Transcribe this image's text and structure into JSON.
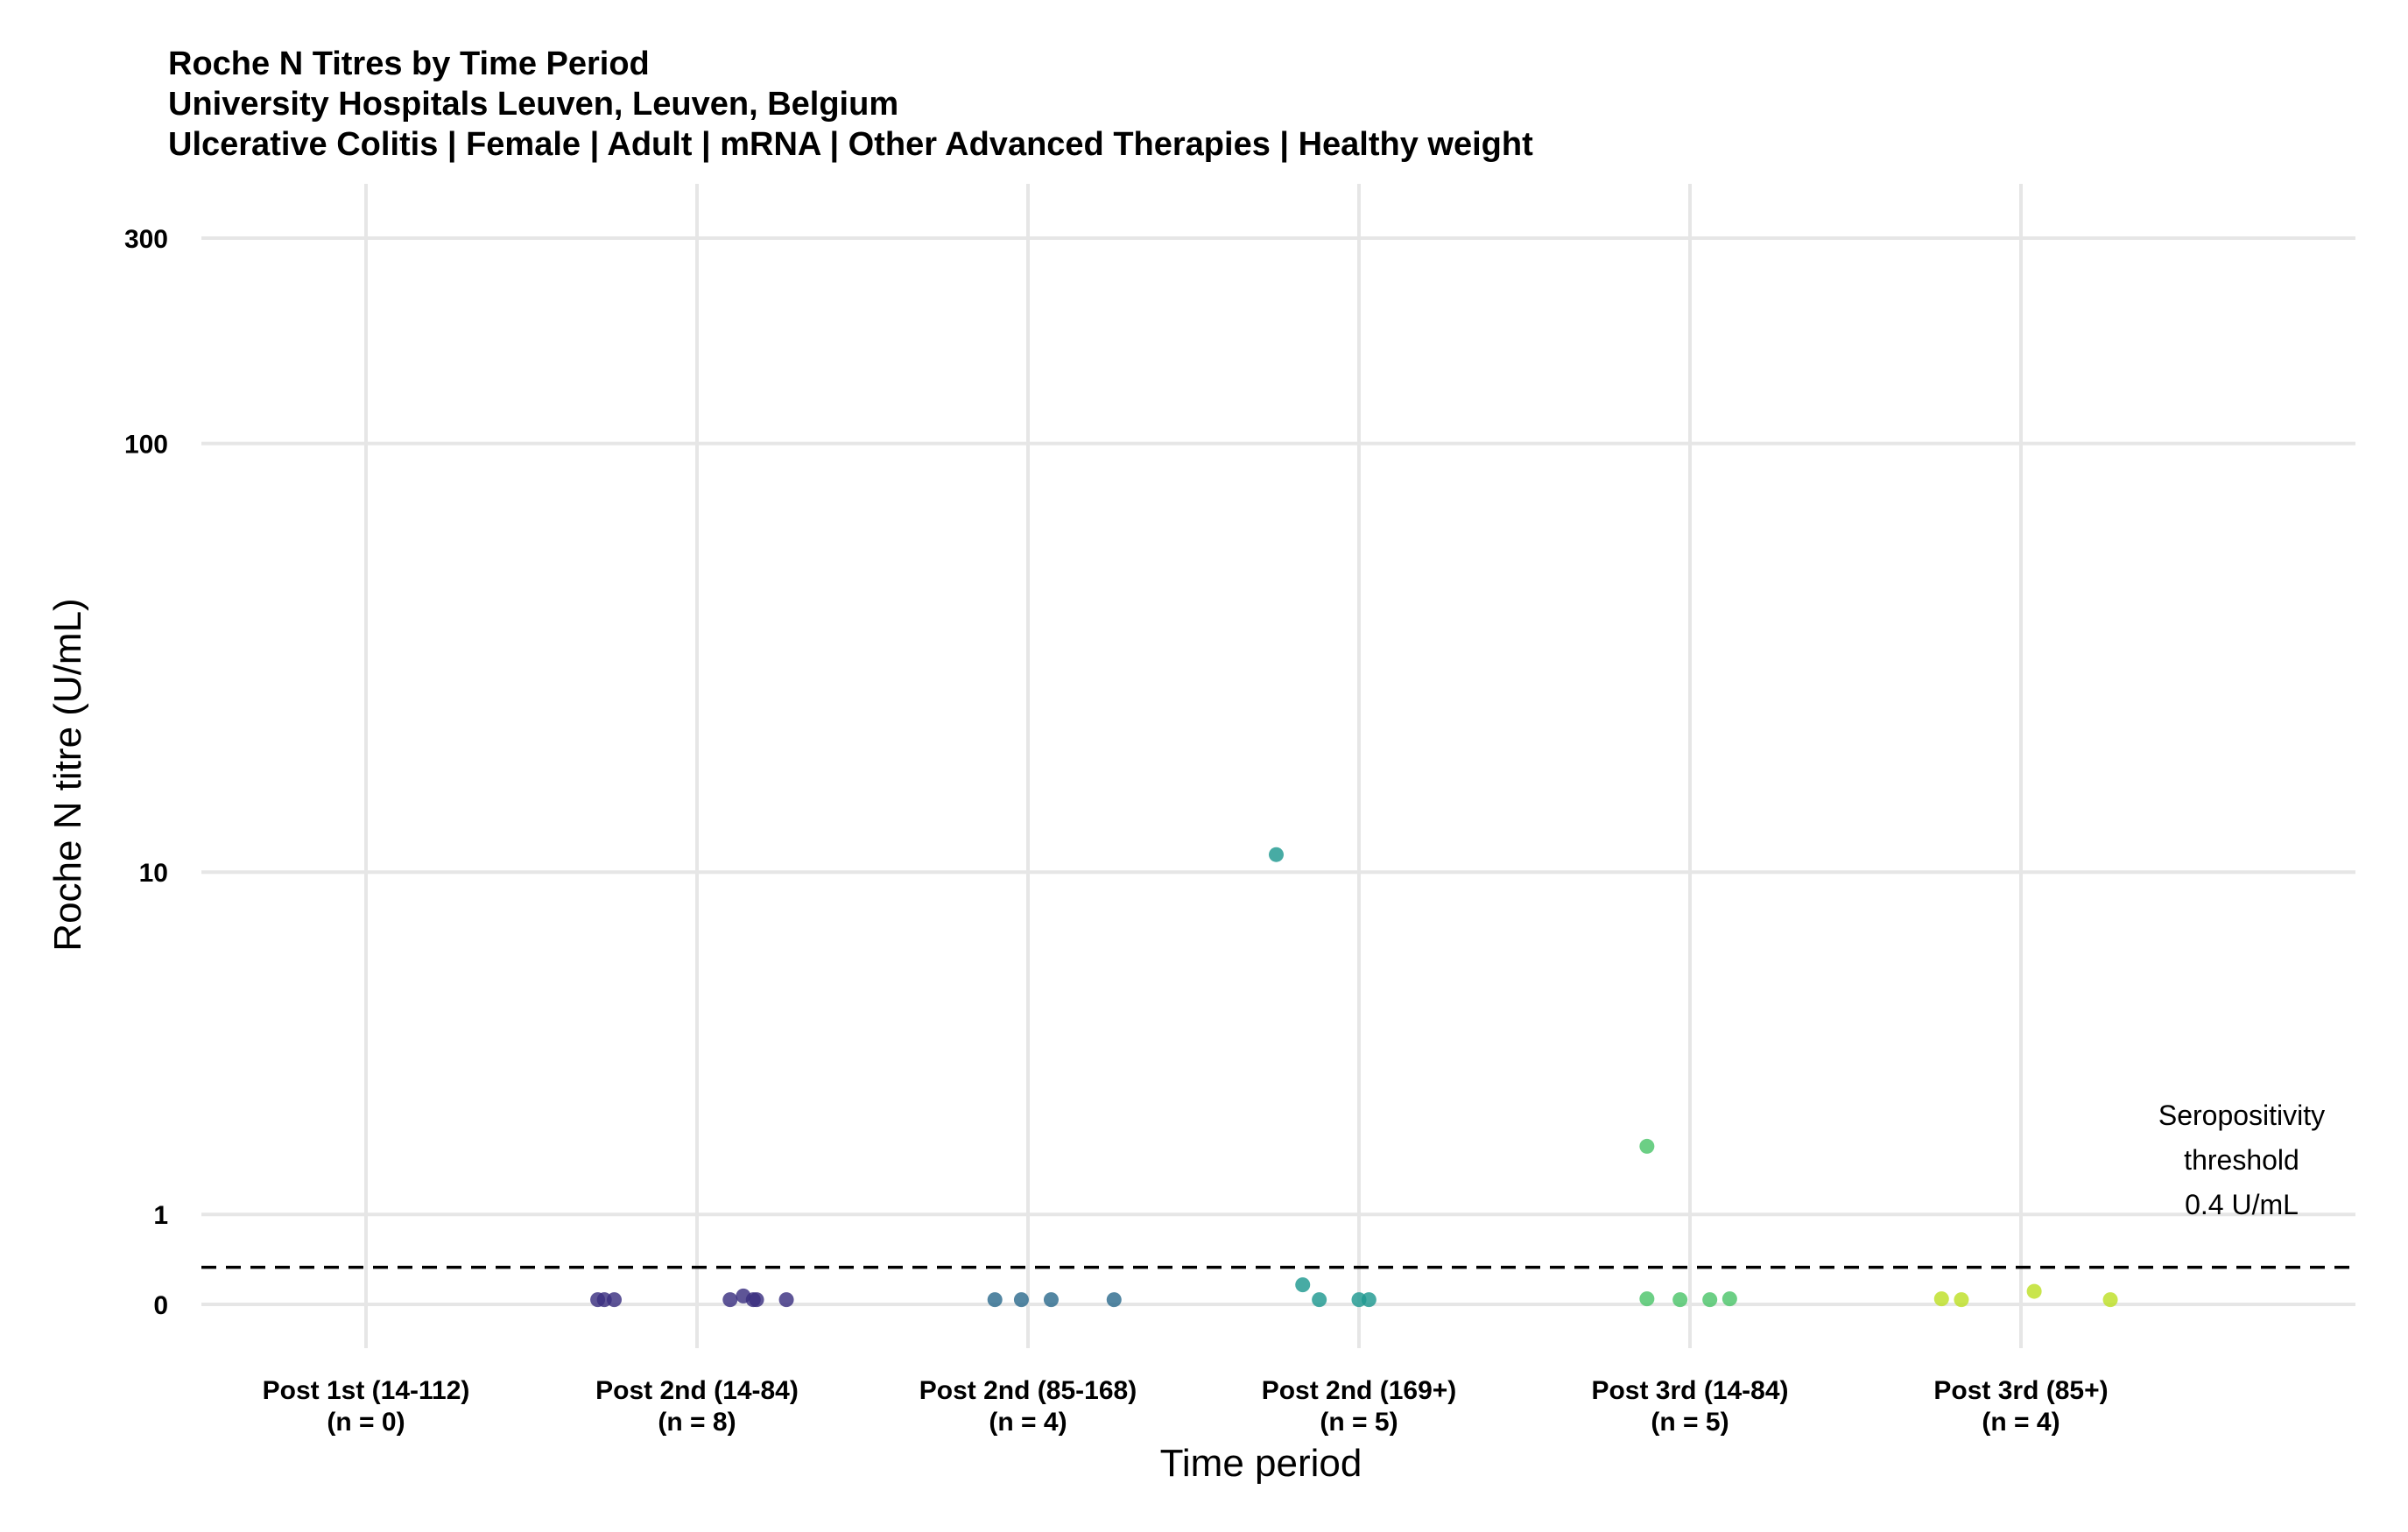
{
  "chart_data": {
    "type": "scatter",
    "title": "Roche N Titres by Time Period",
    "subtitle_1": "University Hospitals Leuven, Leuven, Belgium",
    "subtitle_2": "Ulcerative Colitis | Female | Adult | mRNA | Other Advanced Therapies | Healthy weight",
    "xlabel": "Time period",
    "ylabel": "Roche N titre (U/mL)",
    "y_scale": "pseudo-log",
    "y_ticks": [
      0,
      1,
      10,
      100,
      300
    ],
    "y_tick_labels": [
      "0",
      "1",
      "10",
      "100",
      "300"
    ],
    "ylim": [
      -0.05,
      400
    ],
    "grid": true,
    "categories": [
      {
        "label": "Post 1st (14-112)",
        "n_label": "(n = 0)"
      },
      {
        "label": "Post 2nd (14-84)",
        "n_label": "(n = 8)"
      },
      {
        "label": "Post 2nd (85-168)",
        "n_label": "(n = 4)"
      },
      {
        "label": "Post 2nd (169+)",
        "n_label": "(n = 5)"
      },
      {
        "label": "Post 3rd (14-84)",
        "n_label": "(n = 5)"
      },
      {
        "label": "Post 3rd (85+)",
        "n_label": "(n = 4)"
      }
    ],
    "colors": [
      "#3b1f70",
      "#3b2f80",
      "#2d6b8e",
      "#1f9990",
      "#4cc46a",
      "#bddf26"
    ],
    "points": [
      {
        "cat": 1,
        "x": 0.7,
        "y": 0.05
      },
      {
        "cat": 1,
        "x": 0.72,
        "y": 0.05
      },
      {
        "cat": 1,
        "x": 0.75,
        "y": 0.05
      },
      {
        "cat": 1,
        "x": 1.1,
        "y": 0.05
      },
      {
        "cat": 1,
        "x": 1.14,
        "y": 0.09
      },
      {
        "cat": 1,
        "x": 1.17,
        "y": 0.05
      },
      {
        "cat": 1,
        "x": 1.18,
        "y": 0.05
      },
      {
        "cat": 1,
        "x": 1.27,
        "y": 0.05
      },
      {
        "cat": 2,
        "x": 1.9,
        "y": 0.05
      },
      {
        "cat": 2,
        "x": 1.98,
        "y": 0.05
      },
      {
        "cat": 2,
        "x": 2.07,
        "y": 0.05
      },
      {
        "cat": 2,
        "x": 2.26,
        "y": 0.05
      },
      {
        "cat": 3,
        "x": 2.75,
        "y": 11
      },
      {
        "cat": 3,
        "x": 2.83,
        "y": 0.21
      },
      {
        "cat": 3,
        "x": 2.88,
        "y": 0.05
      },
      {
        "cat": 3,
        "x": 3.0,
        "y": 0.05
      },
      {
        "cat": 3,
        "x": 3.03,
        "y": 0.05
      },
      {
        "cat": 4,
        "x": 3.87,
        "y": 1.9
      },
      {
        "cat": 4,
        "x": 3.87,
        "y": 0.06
      },
      {
        "cat": 4,
        "x": 3.97,
        "y": 0.05
      },
      {
        "cat": 4,
        "x": 4.06,
        "y": 0.05
      },
      {
        "cat": 4,
        "x": 4.12,
        "y": 0.06
      },
      {
        "cat": 5,
        "x": 4.76,
        "y": 0.06
      },
      {
        "cat": 5,
        "x": 4.82,
        "y": 0.05
      },
      {
        "cat": 5,
        "x": 5.04,
        "y": 0.14
      },
      {
        "cat": 5,
        "x": 5.27,
        "y": 0.05
      }
    ],
    "threshold": {
      "value": 0.4,
      "label_lines": [
        "Seropositivity",
        "threshold",
        "0.4 U/mL"
      ]
    }
  }
}
